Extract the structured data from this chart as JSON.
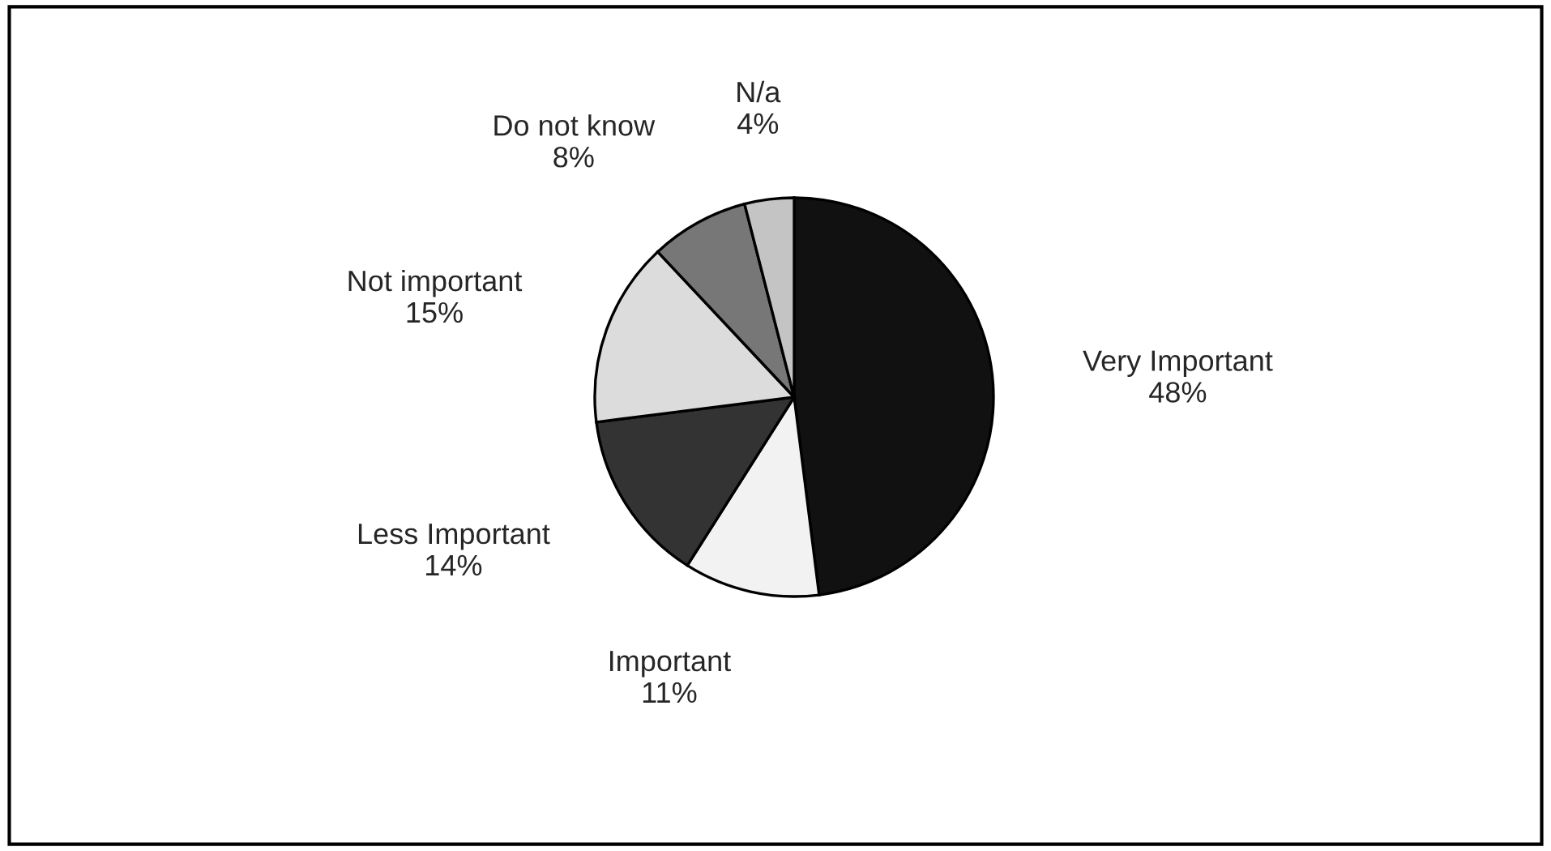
{
  "chart_data": {
    "type": "pie",
    "categories": [
      "Very Important",
      "Important",
      "Less Important",
      "Not important",
      "Do not know",
      "N/a"
    ],
    "values": [
      48,
      11,
      14,
      15,
      8,
      4
    ],
    "value_labels": [
      "48%",
      "11%",
      "14%",
      "15%",
      "8%",
      "4%"
    ],
    "colors": [
      "#111111",
      "#f2f2f2",
      "#333333",
      "#dcdcdc",
      "#777777",
      "#c4c4c4"
    ]
  }
}
